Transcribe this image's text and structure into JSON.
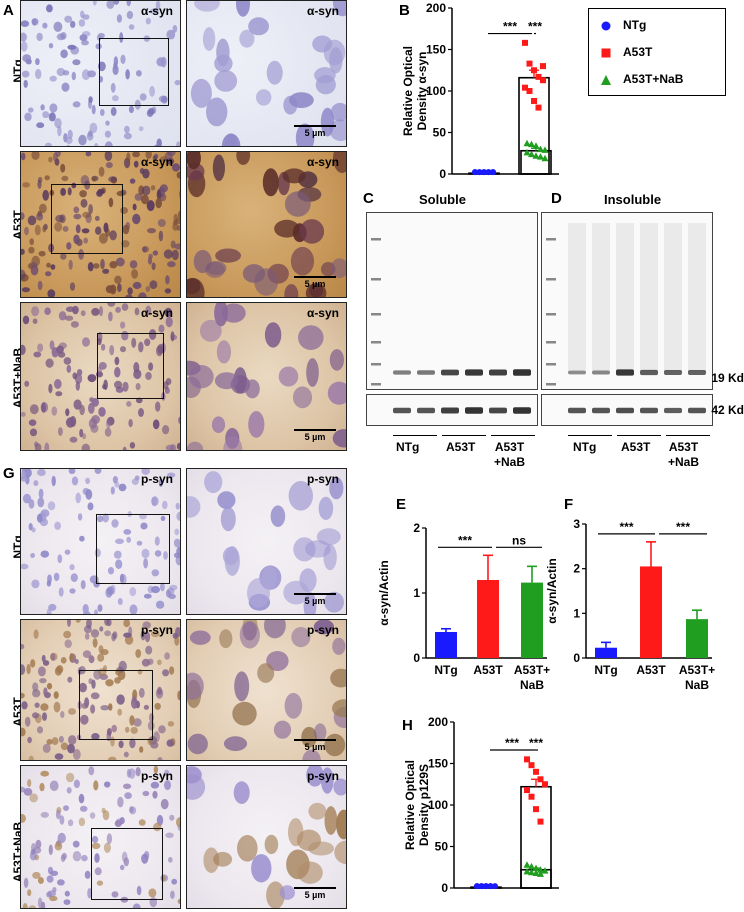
{
  "panels": {
    "A": "A",
    "B": "B",
    "C": "C",
    "D": "D",
    "E": "E",
    "F": "F",
    "G": "G",
    "H": "H"
  },
  "rows": {
    "ntg": "NTg",
    "a53t": "A53T",
    "nab": "A53T+NaB"
  },
  "stains": {
    "asyn": "α-syn",
    "psyn": "p-syn"
  },
  "scalebar": "5 µm",
  "blot": {
    "soluble": "Soluble",
    "insoluble": "Insoluble",
    "kd19": "19 Kd",
    "kd42": "42 Kd",
    "groups": [
      "NTg",
      "A53T",
      "A53T\n+NaB"
    ]
  },
  "legend": {
    "items": [
      {
        "name": "NTg",
        "color": "#1a1aff",
        "marker": "circle"
      },
      {
        "name": "A53T",
        "color": "#ff1a1a",
        "marker": "square"
      },
      {
        "name": "A53T+NaB",
        "color": "#1f9e1f",
        "marker": "triangle"
      }
    ]
  },
  "colors": {
    "ntg": "#1a1aff",
    "a53t": "#ff1a1a",
    "nab": "#1f9e1f"
  },
  "chart_data": [
    {
      "id": "B",
      "type": "scatter",
      "ylabel": "Relative Optical\nDensity α-syn",
      "ylim": [
        0,
        200
      ],
      "yticks": [
        0,
        50,
        100,
        150,
        200
      ],
      "sig": [
        "***",
        "***"
      ],
      "series": [
        {
          "name": "NTg",
          "mean": 1,
          "sem": 0.5,
          "points": [
            1,
            1,
            1,
            1,
            1,
            1,
            1,
            1,
            1,
            1
          ]
        },
        {
          "name": "A53T",
          "mean": 116,
          "sem": 9,
          "points": [
            158,
            133,
            125,
            117,
            113,
            104,
            100,
            88,
            80,
            130
          ]
        },
        {
          "name": "A53T+NaB",
          "mean": 28,
          "sem": 3,
          "points": [
            37,
            36,
            34,
            30,
            29,
            26,
            24,
            22,
            21,
            19
          ]
        }
      ]
    },
    {
      "id": "E",
      "type": "bar",
      "ylabel": "α-syn/Actin",
      "ylim": [
        0,
        2
      ],
      "yticks": [
        0,
        1,
        2
      ],
      "categories": [
        "NTg",
        "A53T",
        "A53T+\nNaB"
      ],
      "values": [
        0.4,
        1.2,
        1.16
      ],
      "errors": [
        0.05,
        0.38,
        0.25
      ],
      "sig": [
        "***",
        "ns"
      ]
    },
    {
      "id": "F",
      "type": "bar",
      "ylabel": "α-syn/Actin",
      "ylim": [
        0,
        3
      ],
      "yticks": [
        0,
        1,
        2,
        3
      ],
      "categories": [
        "NTg",
        "A53T",
        "A53T+\nNaB"
      ],
      "values": [
        0.23,
        2.05,
        0.87
      ],
      "errors": [
        0.12,
        0.55,
        0.2
      ],
      "sig": [
        "***",
        "***"
      ]
    },
    {
      "id": "H",
      "type": "scatter",
      "ylabel": "Relative Optical\nDensity p129S",
      "ylim": [
        0,
        200
      ],
      "yticks": [
        0,
        50,
        100,
        150,
        200
      ],
      "sig": [
        "***",
        "***"
      ],
      "series": [
        {
          "name": "NTg",
          "mean": 1,
          "sem": 0.5,
          "points": [
            1,
            1,
            1,
            1,
            1,
            1,
            1,
            1,
            1
          ]
        },
        {
          "name": "A53T",
          "mean": 122,
          "sem": 9,
          "points": [
            155,
            148,
            140,
            131,
            125,
            118,
            110,
            95,
            80
          ]
        },
        {
          "name": "A53T+NaB",
          "mean": 22,
          "sem": 2,
          "points": [
            28,
            26,
            24,
            22,
            21,
            20,
            19,
            18,
            17
          ]
        }
      ]
    }
  ]
}
